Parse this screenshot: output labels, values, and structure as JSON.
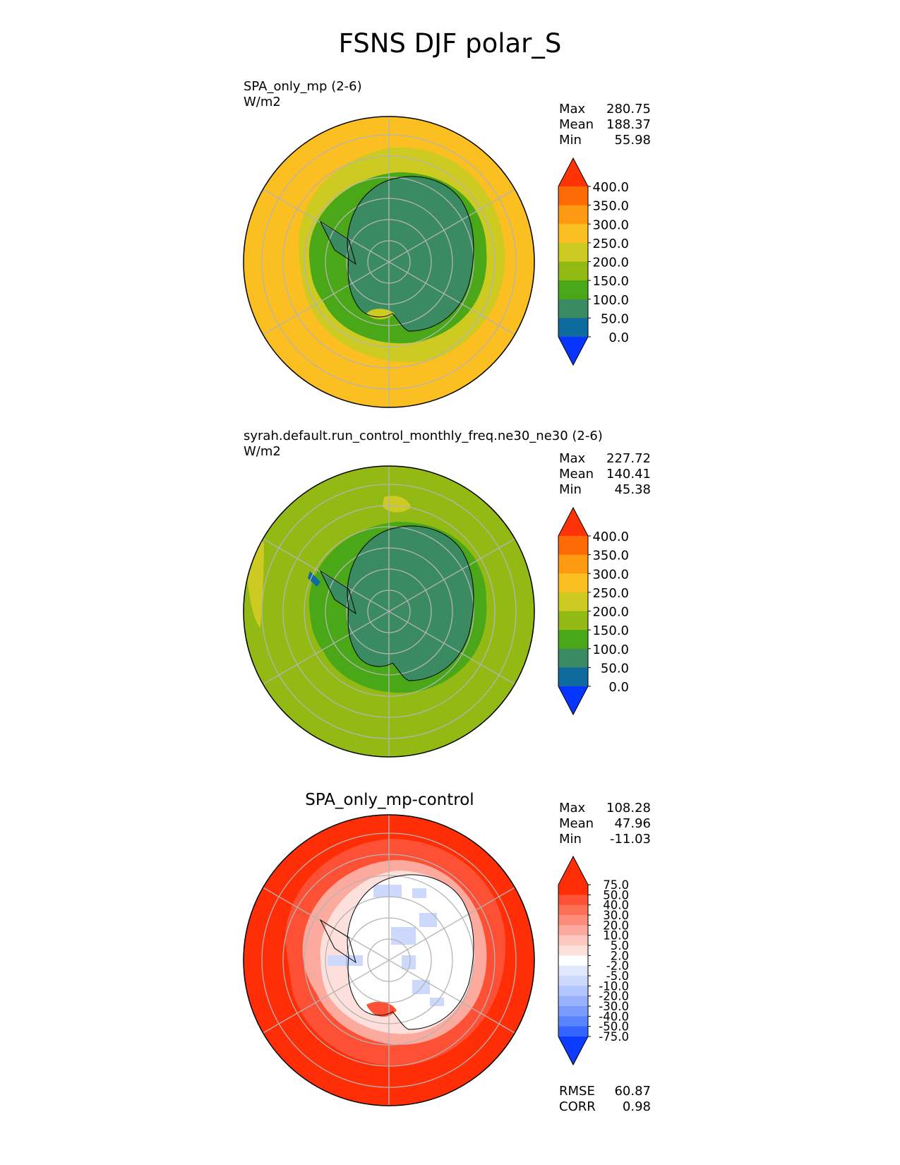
{
  "figure": {
    "title": "FSNS DJF polar_S"
  },
  "colors": {
    "ocean_test": "#fcbf22",
    "ocean_ref": "#93b915",
    "ice": "#3a8a62",
    "belt": "#4aa818",
    "mid": "#cdca22",
    "grid": "#b4b4b4",
    "coast": "#000000"
  },
  "panels": [
    {
      "title": "SPA_only_mp (2-6)",
      "units": "W/m2",
      "stats": {
        "max_label": "Max",
        "max": "280.75",
        "mean_label": "Mean",
        "mean": "188.37",
        "min_label": "Min",
        "min": "55.98"
      }
    },
    {
      "title": "syrah.default.run_control_monthly_freq.ne30_ne30 (2-6)",
      "units": "W/m2",
      "stats": {
        "max_label": "Max",
        "max": "227.72",
        "mean_label": "Mean",
        "mean": "140.41",
        "min_label": "Min",
        "min": "45.38"
      }
    },
    {
      "title": "SPA_only_mp-control",
      "stats": {
        "max_label": "Max",
        "max": "108.28",
        "mean_label": "Mean",
        "mean": "47.96",
        "min_label": "Min",
        "min": "-11.03"
      },
      "metrics": {
        "rmse_label": "RMSE",
        "rmse": "60.87",
        "corr_label": "CORR",
        "corr": "0.98"
      }
    }
  ],
  "chart_data": [
    {
      "type": "heatmap",
      "projection": "south-polar-stereographic",
      "title": "SPA_only_mp (2-6)",
      "units": "W/m2",
      "field_summary": {
        "max": 280.75,
        "mean": 188.37,
        "min": 55.98
      },
      "colorbar": {
        "levels": [
          0,
          50,
          100,
          150,
          200,
          250,
          300,
          350,
          400
        ],
        "tick_labels": [
          "0.0",
          "50.0",
          "100.0",
          "150.0",
          "200.0",
          "250.0",
          "300.0",
          "350.0",
          "400.0"
        ],
        "colors": [
          "#0535ff",
          "#0f6a9e",
          "#3a8a62",
          "#4aa818",
          "#93b915",
          "#cdca22",
          "#fcbf22",
          "#fd9a12",
          "#fd6a06",
          "#ff3306"
        ],
        "extend": "both"
      }
    },
    {
      "type": "heatmap",
      "projection": "south-polar-stereographic",
      "title": "syrah.default.run_control_monthly_freq.ne30_ne30 (2-6)",
      "units": "W/m2",
      "field_summary": {
        "max": 227.72,
        "mean": 140.41,
        "min": 45.38
      },
      "colorbar": {
        "levels": [
          0,
          50,
          100,
          150,
          200,
          250,
          300,
          350,
          400
        ],
        "tick_labels": [
          "0.0",
          "50.0",
          "100.0",
          "150.0",
          "200.0",
          "250.0",
          "300.0",
          "350.0",
          "400.0"
        ],
        "colors": [
          "#0535ff",
          "#0f6a9e",
          "#3a8a62",
          "#4aa818",
          "#93b915",
          "#cdca22",
          "#fcbf22",
          "#fd9a12",
          "#fd6a06",
          "#ff3306"
        ],
        "extend": "both"
      }
    },
    {
      "type": "heatmap",
      "projection": "south-polar-stereographic",
      "title": "SPA_only_mp-control",
      "field_summary": {
        "max": 108.28,
        "mean": 47.96,
        "min": -11.03,
        "rmse": 60.87,
        "corr": 0.98
      },
      "colorbar": {
        "levels": [
          -75,
          -50,
          -40,
          -30,
          -20,
          -10,
          -5,
          -2,
          2,
          5,
          10,
          20,
          30,
          40,
          50,
          75
        ],
        "tick_labels": [
          "-75.0",
          "-50.0",
          "-40.0",
          "-30.0",
          "-20.0",
          "-10.0",
          "-5.0",
          "-2.0",
          "2.0",
          "5.0",
          "10.0",
          "20.0",
          "30.0",
          "40.0",
          "50.0",
          "75.0"
        ],
        "colors": [
          "#0b3cff",
          "#3564ff",
          "#5a84ff",
          "#7a9cff",
          "#98b2ff",
          "#b2c6ff",
          "#ccd8fc",
          "#e2e8fc",
          "#ffffff",
          "#fde0dc",
          "#fdc8c0",
          "#fdaa9e",
          "#fd8c7a",
          "#fd6e56",
          "#fd5034",
          "#ff2e06",
          "#ff2e06"
        ],
        "extend": "both"
      }
    }
  ]
}
